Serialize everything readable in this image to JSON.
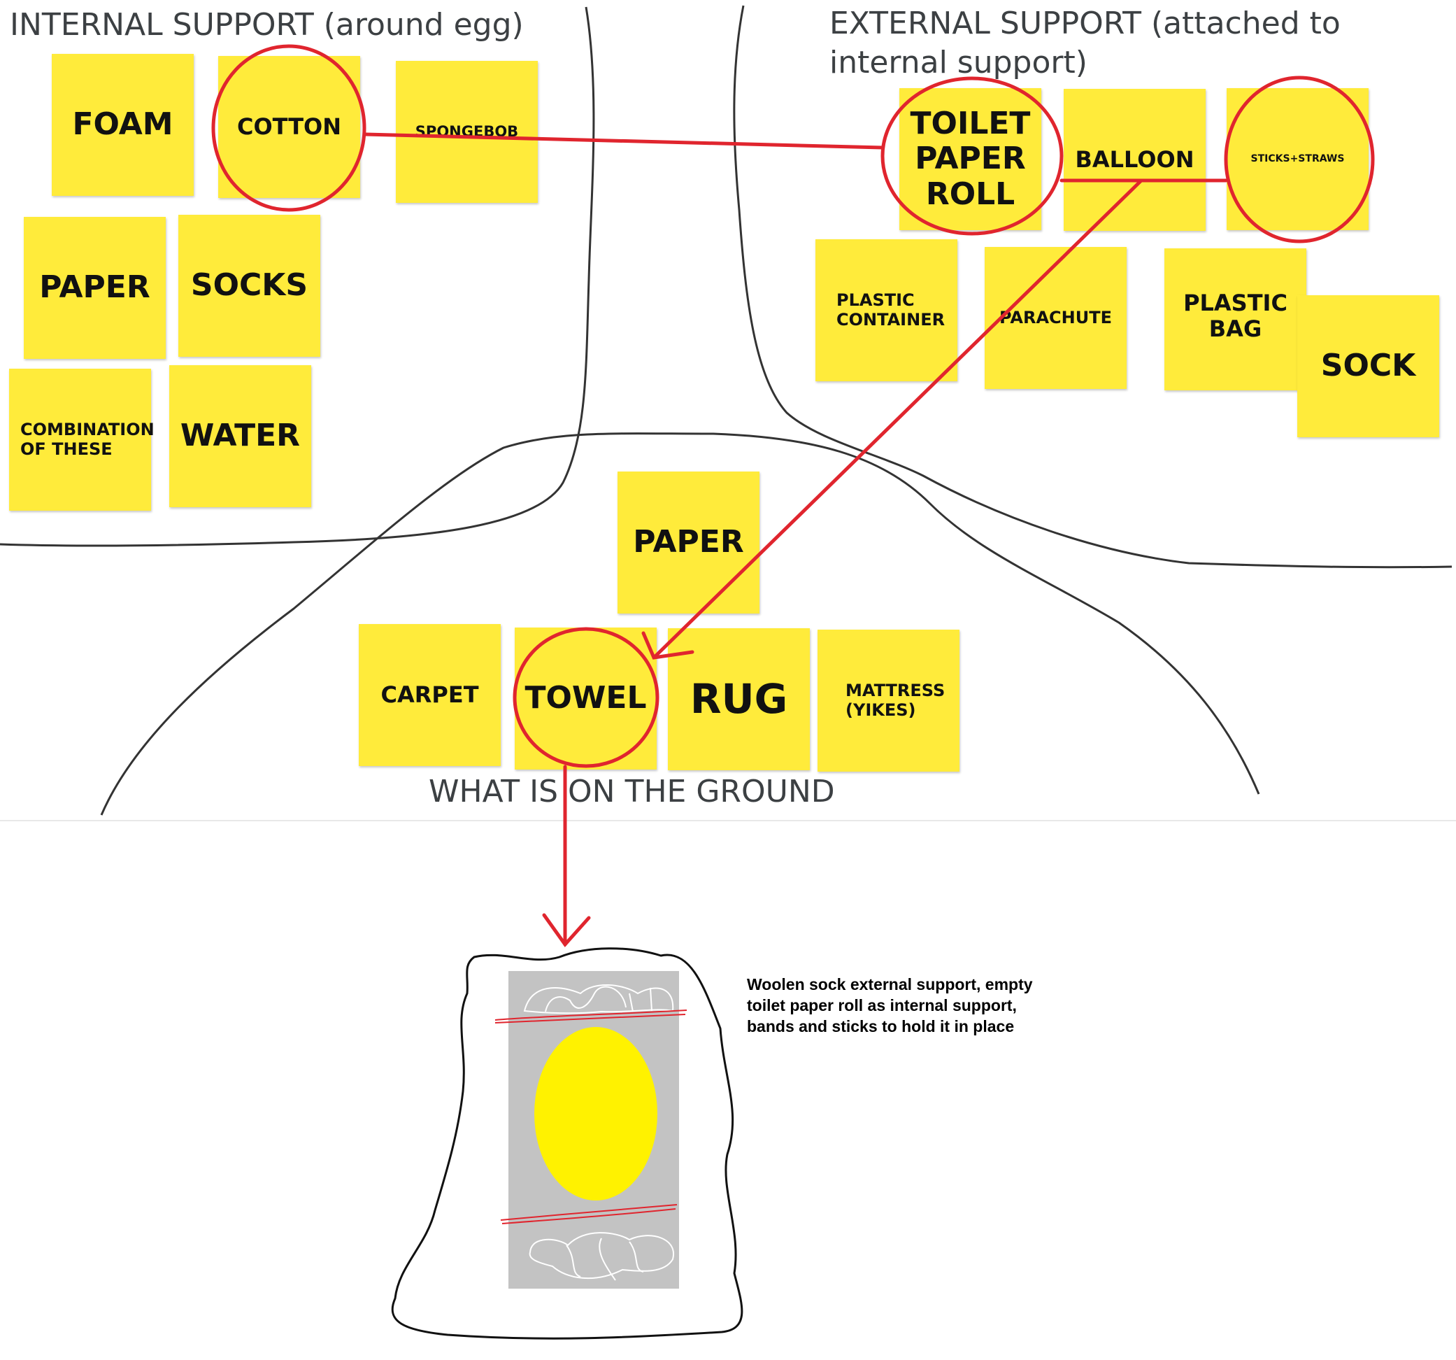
{
  "headings": {
    "internal": "INTERNAL SUPPORT (around egg)",
    "external_line1": "EXTERNAL SUPPORT (attached to",
    "external_line2": "internal support)",
    "ground": "WHAT IS ON THE GROUND"
  },
  "internal_notes": [
    "FOAM",
    "COTTON",
    "SPONGEBOB",
    "PAPER",
    "SOCKS",
    "COMBINATION OF THESE",
    "WATER"
  ],
  "external_notes": [
    "TOILET PAPER ROLL",
    "BALLOON",
    "STICKS+STRAWS",
    "PLASTIC CONTAINER",
    "PARACHUTE",
    "PLASTIC BAG",
    "SOCK"
  ],
  "ground_notes": [
    "PAPER",
    "CARPET",
    "TOWEL",
    "RUG",
    "MATTRESS (YIKES)"
  ],
  "selected": [
    "COTTON",
    "TOILET PAPER ROLL",
    "STICKS+STRAWS",
    "TOWEL"
  ],
  "caption": "Woolen sock external support, empty toilet paper roll as internal support, bands and sticks to hold it in place",
  "colors": {
    "sticky_note": "#ffeb3b",
    "annotation_red": "#e0252e",
    "divider_line": "#333333",
    "egg_yellow": "#fff200",
    "roll_gray": "#c3c3c3"
  }
}
